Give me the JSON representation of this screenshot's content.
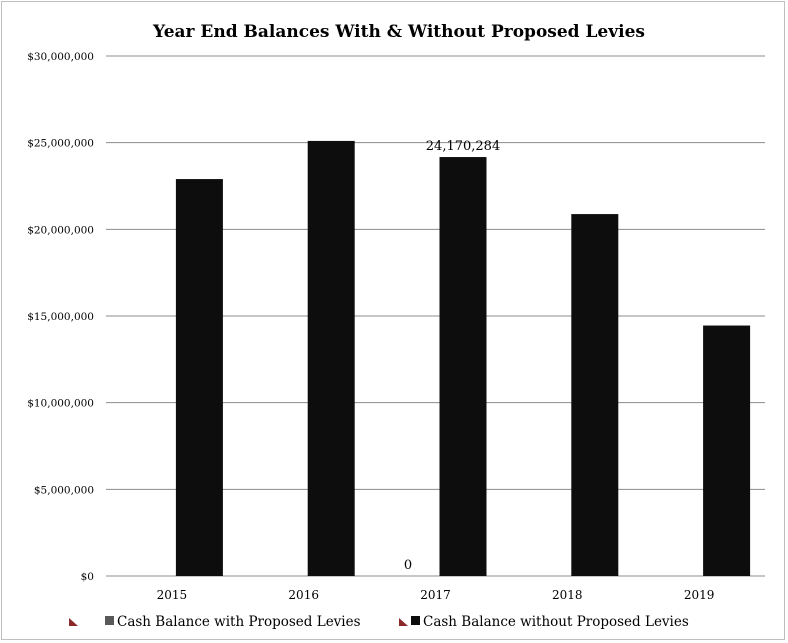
{
  "chart_data": {
    "type": "bar",
    "title": "Year End Balances With & Without Proposed Levies",
    "categories": [
      "2015",
      "2016",
      "2017",
      "2018",
      "2019"
    ],
    "series": [
      {
        "name": "Cash Balance with Proposed Levies",
        "values": [
          null,
          null,
          0,
          null,
          null
        ],
        "color": "#595959"
      },
      {
        "name": "Cash Balance without Proposed Levies",
        "values": [
          22900000,
          25100000,
          24170284,
          20880000,
          14450000
        ],
        "color": "#0d0d0d"
      }
    ],
    "data_labels": [
      {
        "series": 0,
        "index": 2,
        "text": "0"
      },
      {
        "series": 1,
        "index": 2,
        "text": "24,170,284"
      }
    ],
    "y_ticks": [
      "$0",
      "$5,000,000",
      "$10,000,000",
      "$15,000,000",
      "$20,000,000",
      "$25,000,000",
      "$30,000,000"
    ],
    "ylim": [
      0,
      30000000
    ],
    "grid": true,
    "legend": "bottom"
  }
}
